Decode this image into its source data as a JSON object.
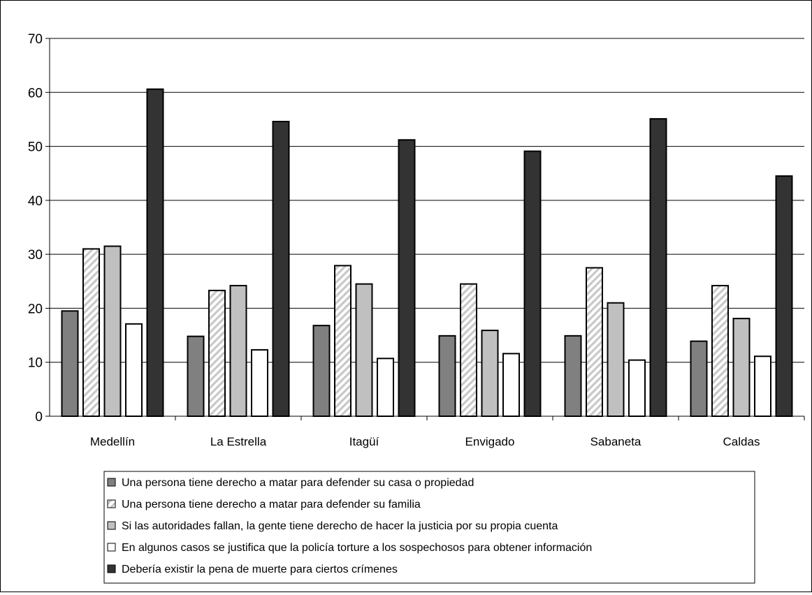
{
  "chart_data": {
    "type": "bar",
    "categories": [
      "Medellín",
      "La Estrella",
      "Itagüí",
      "Envigado",
      "Sabaneta",
      "Caldas"
    ],
    "series": [
      {
        "name": "Una persona tiene derecho a matar para defender su casa o propiedad",
        "values": [
          19.5,
          14.8,
          16.8,
          14.9,
          14.9,
          13.9
        ],
        "color": "#808080",
        "pattern": "solid"
      },
      {
        "name": "Una persona tiene derecho a matar para defender su familia",
        "values": [
          31.0,
          23.3,
          27.9,
          24.5,
          27.5,
          24.2
        ],
        "color": "#ffffff",
        "pattern": "diagonal-hatch"
      },
      {
        "name": "Si las autoridades fallan, la gente tiene derecho de hacer la justicia por su propia cuenta",
        "values": [
          31.5,
          24.2,
          24.5,
          15.9,
          21.0,
          18.1
        ],
        "color": "#c0c0c0",
        "pattern": "solid"
      },
      {
        "name": "En algunos casos se justifica que la policía torture a los sospechosos para obtener información",
        "values": [
          17.1,
          12.3,
          10.7,
          11.6,
          10.4,
          11.1
        ],
        "color": "#ffffff",
        "pattern": "solid"
      },
      {
        "name": "Debería existir la pena de muerte para ciertos crímenes",
        "values": [
          60.6,
          54.6,
          51.2,
          49.1,
          55.1,
          44.5
        ],
        "color": "#333333",
        "pattern": "solid"
      }
    ],
    "ylim": [
      0,
      70
    ],
    "yticks": [
      "0",
      "10",
      "20",
      "30",
      "40",
      "50",
      "60",
      "70"
    ],
    "grid": true,
    "legend": "bottom",
    "title": "",
    "xlabel": "",
    "ylabel": ""
  }
}
